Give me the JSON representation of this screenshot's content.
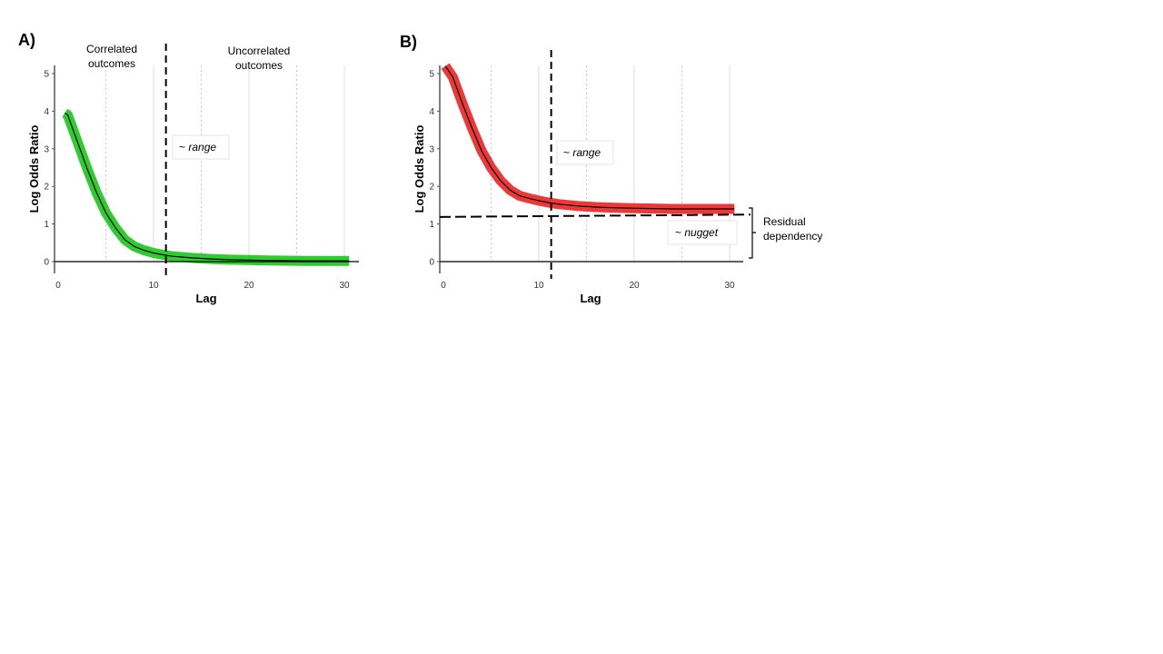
{
  "chart_data": [
    {
      "panel_label": "A)",
      "type": "line",
      "xlabel": "Lag",
      "ylabel": "Log Odds Ratio",
      "xticks": [
        0,
        10,
        20,
        30
      ],
      "yticks": [
        0,
        1,
        2,
        3,
        4,
        5
      ],
      "xlim": [
        0,
        30
      ],
      "ylim": [
        0,
        5
      ],
      "minor_grid_x": [
        5,
        15,
        25
      ],
      "major_grid_x": [
        10,
        20,
        30
      ],
      "band_color": "#2ecc2e",
      "line_color": "#000000",
      "range_line_x": 11.3,
      "range_label_prefix": "~ ",
      "range_label_italic": "range",
      "region_left_label": [
        "Correlated",
        "outcomes"
      ],
      "region_right_label": [
        "Uncorrelated",
        "outcomes"
      ],
      "series": [
        {
          "x": [
            0.7,
            1,
            2,
            3,
            4,
            5,
            6,
            7,
            8,
            9,
            10,
            11,
            12,
            14,
            16,
            18,
            20,
            22,
            24,
            26,
            28,
            30.5
          ],
          "y": [
            3.95,
            3.9,
            3.2,
            2.5,
            1.85,
            1.3,
            0.9,
            0.58,
            0.4,
            0.3,
            0.23,
            0.18,
            0.14,
            0.1,
            0.07,
            0.05,
            0.04,
            0.03,
            0.025,
            0.02,
            0.02,
            0.02
          ]
        }
      ]
    },
    {
      "panel_label": "B)",
      "type": "line",
      "xlabel": "Lag",
      "ylabel": "Log Odds Ratio",
      "xticks": [
        0,
        10,
        20,
        30
      ],
      "yticks": [
        0,
        1,
        2,
        3,
        4,
        5
      ],
      "xlim": [
        0,
        30
      ],
      "ylim": [
        0,
        5
      ],
      "minor_grid_x": [
        5,
        15,
        25
      ],
      "major_grid_x": [
        10,
        20,
        30
      ],
      "band_color": "#ee3838",
      "line_color": "#000000",
      "range_line_x": 11.3,
      "nugget_y": 1.2,
      "range_label_prefix": "~ ",
      "range_label_italic": "range",
      "nugget_label_prefix": "~ ",
      "nugget_label_italic": "nugget",
      "residual_label": [
        "Residual",
        "dependency"
      ],
      "series": [
        {
          "x": [
            0.2,
            1,
            2,
            3,
            4,
            5,
            6,
            7,
            8,
            9,
            10,
            11,
            12,
            14,
            16,
            18,
            20,
            22,
            24,
            26,
            28,
            30.5
          ],
          "y": [
            5.2,
            4.9,
            4.2,
            3.55,
            2.95,
            2.5,
            2.15,
            1.9,
            1.75,
            1.68,
            1.62,
            1.57,
            1.53,
            1.48,
            1.45,
            1.43,
            1.42,
            1.41,
            1.4,
            1.4,
            1.4,
            1.4
          ]
        }
      ]
    }
  ]
}
